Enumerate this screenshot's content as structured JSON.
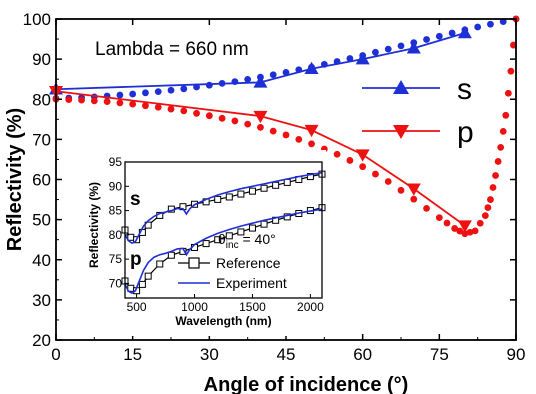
{
  "chart_data": [
    {
      "type": "line",
      "title": "",
      "xlabel": "Angle of incidence (°)",
      "ylabel": "Reflectivity (%)",
      "xlim": [
        0,
        90
      ],
      "ylim": [
        20,
        100
      ],
      "x_ticks": [
        0,
        15,
        30,
        45,
        60,
        75,
        90
      ],
      "y_ticks": [
        20,
        30,
        40,
        50,
        60,
        70,
        80,
        90,
        100
      ],
      "x_tick_labels": [
        "0",
        "15",
        "30",
        "45",
        "60",
        "75",
        "90"
      ],
      "y_tick_labels": [
        "20",
        "30",
        "40",
        "50",
        "60",
        "70",
        "80",
        "90",
        "100"
      ],
      "grid": false,
      "annotation": "Lambda = 660 nm",
      "legend_placement": "right",
      "series": [
        {
          "name": "s",
          "style": "line with up-triangle markers",
          "color": "#1f2fd6",
          "x": [
            0,
            40,
            50,
            60,
            70,
            80
          ],
          "y": [
            82.5,
            84.2,
            87.6,
            90.0,
            92.7,
            96.5
          ]
        },
        {
          "name": "p",
          "style": "line with down-triangle markers",
          "color": "#ee1111",
          "x": [
            0,
            40,
            50,
            60,
            70,
            80
          ],
          "y": [
            82.0,
            75.8,
            72.3,
            66.2,
            57.7,
            48.5
          ]
        },
        {
          "name": "",
          "style": "dotted theory",
          "color": "#1f2fd6",
          "x": [
            0,
            5,
            10,
            15,
            20,
            25,
            30,
            35,
            40,
            45,
            50,
            55,
            60,
            65,
            70,
            75,
            80,
            85,
            90
          ],
          "y": [
            80.2,
            80.4,
            80.8,
            81.3,
            81.9,
            82.6,
            83.5,
            84.4,
            85.5,
            86.7,
            88.0,
            89.4,
            90.9,
            92.5,
            94.1,
            95.7,
            97.3,
            98.7,
            100
          ]
        },
        {
          "name": "",
          "style": "dotted theory",
          "color": "#ee1111",
          "x": [
            0,
            5,
            10,
            15,
            20,
            25,
            30,
            35,
            40,
            45,
            50,
            55,
            60,
            65,
            70,
            75,
            78,
            80,
            82,
            84,
            85,
            86,
            87,
            88,
            89,
            90
          ],
          "y": [
            80.0,
            79.8,
            79.4,
            78.8,
            78.0,
            77.1,
            75.9,
            74.6,
            73.0,
            71.1,
            68.9,
            66.3,
            63.2,
            59.5,
            55.1,
            50.5,
            47.8,
            46.5,
            47.2,
            51.0,
            55.0,
            61.0,
            68.0,
            76.0,
            87.0,
            100
          ]
        }
      ]
    },
    {
      "type": "line",
      "title": "",
      "xlabel": "Wavelength (nm)",
      "ylabel": "Reflectivity (%)",
      "xlim": [
        400,
        2100
      ],
      "ylim": [
        67,
        95
      ],
      "x_ticks": [
        500,
        1000,
        1500,
        2000
      ],
      "y_ticks": [
        70,
        75,
        80,
        85,
        90,
        95
      ],
      "x_tick_labels": [
        "500",
        "1000",
        "1500",
        "2000"
      ],
      "y_tick_labels": [
        "70",
        "75",
        "80",
        "85",
        "90",
        "95"
      ],
      "annotation": "θinc = 40°",
      "annotation_main": "θ",
      "annotation_sub": "inc",
      "annotation_rest": " = 40°",
      "curve_labels": [
        "s",
        "p"
      ],
      "legend": [
        "Reference",
        "Experiment"
      ],
      "legend_placement": "bottom-right",
      "series": [
        {
          "name": "Reference",
          "curve": "s",
          "color": "#000000",
          "style": "line with open-square markers",
          "x": [
            400,
            450,
            500,
            550,
            600,
            700,
            800,
            900,
            1000,
            1100,
            1200,
            1300,
            1400,
            1500,
            1600,
            1700,
            1800,
            1900,
            2000,
            2100
          ],
          "y": [
            81.0,
            79.5,
            79.0,
            80.5,
            82.0,
            84.0,
            85.3,
            85.8,
            86.3,
            86.8,
            87.3,
            87.8,
            88.4,
            89.0,
            89.6,
            90.2,
            90.8,
            91.4,
            92.0,
            92.5
          ]
        },
        {
          "name": "Experiment",
          "curve": "s",
          "color": "#1f2fd6",
          "style": "line",
          "x": [
            400,
            430,
            460,
            490,
            520,
            560,
            600,
            650,
            700,
            750,
            800,
            850,
            900,
            930,
            960,
            1000,
            1100,
            1200,
            1300,
            1400,
            1500,
            1600,
            1700,
            1800,
            1900,
            2000,
            2100
          ],
          "y": [
            80.0,
            78.8,
            78.3,
            78.6,
            80.0,
            81.8,
            82.9,
            83.8,
            84.4,
            84.7,
            85.0,
            85.4,
            85.4,
            84.3,
            85.4,
            86.2,
            87.3,
            88.2,
            88.9,
            89.5,
            90.0,
            90.5,
            91.0,
            91.5,
            92.0,
            92.4,
            92.8
          ]
        },
        {
          "name": "Reference",
          "curve": "p",
          "color": "#000000",
          "style": "line with open-square markers",
          "x": [
            400,
            450,
            500,
            550,
            600,
            700,
            800,
            900,
            1000,
            1100,
            1200,
            1300,
            1400,
            1500,
            1600,
            1700,
            1800,
            1900,
            2000,
            2100
          ],
          "y": [
            70.5,
            69.0,
            68.5,
            69.8,
            71.5,
            74.0,
            75.8,
            76.6,
            77.4,
            78.2,
            79.0,
            79.8,
            80.6,
            81.4,
            82.2,
            83.0,
            83.7,
            84.4,
            85.0,
            85.6
          ]
        },
        {
          "name": "Experiment",
          "curve": "p",
          "color": "#1f2fd6",
          "style": "line",
          "x": [
            400,
            430,
            460,
            490,
            520,
            560,
            600,
            650,
            700,
            750,
            800,
            850,
            900,
            930,
            960,
            1000,
            1100,
            1200,
            1300,
            1400,
            1500,
            1600,
            1700,
            1800,
            1900,
            2000,
            2100
          ],
          "y": [
            69.8,
            68.4,
            68.0,
            68.5,
            70.3,
            72.7,
            74.3,
            75.4,
            75.9,
            76.2,
            76.6,
            77.1,
            77.2,
            75.9,
            77.0,
            78.0,
            79.3,
            80.3,
            81.1,
            81.8,
            82.4,
            83.0,
            83.5,
            84.0,
            84.5,
            84.9,
            85.3
          ]
        }
      ]
    }
  ]
}
